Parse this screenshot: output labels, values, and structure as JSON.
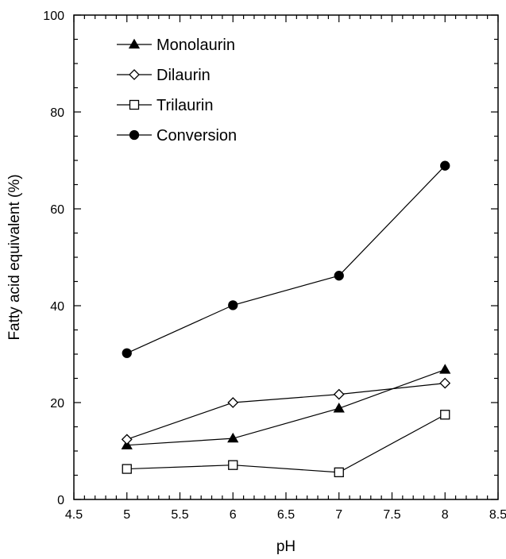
{
  "chart_data": {
    "type": "line",
    "title": "",
    "xlabel": "pH",
    "ylabel": "Fatty acid equivalent (%)",
    "xlim": [
      4.5,
      8.5
    ],
    "ylim": [
      0,
      100
    ],
    "x_ticks": [
      4.5,
      5,
      5.5,
      6,
      6.5,
      7,
      7.5,
      8,
      8.5
    ],
    "x_tick_labels": [
      "4.5",
      "5",
      "5.5",
      "6",
      "6.5",
      "7",
      "7.5",
      "8",
      "8.5"
    ],
    "y_ticks": [
      0,
      20,
      40,
      60,
      80,
      100
    ],
    "y_tick_labels": [
      "0",
      "20",
      "40",
      "60",
      "80",
      "100"
    ],
    "grid": false,
    "legend_position": "top-left",
    "x": [
      5,
      6,
      7,
      8
    ],
    "series": [
      {
        "name": "Monolaurin",
        "marker": "filled-triangle",
        "values": [
          11.2,
          12.6,
          18.8,
          26.8
        ]
      },
      {
        "name": "Dilaurin",
        "marker": "open-diamond",
        "values": [
          12.4,
          20.0,
          21.7,
          24.0
        ]
      },
      {
        "name": "Trilaurin",
        "marker": "open-square",
        "values": [
          6.3,
          7.1,
          5.6,
          17.5
        ]
      },
      {
        "name": "Conversion",
        "marker": "filled-circle",
        "values": [
          30.2,
          40.1,
          46.2,
          68.9
        ]
      }
    ]
  }
}
